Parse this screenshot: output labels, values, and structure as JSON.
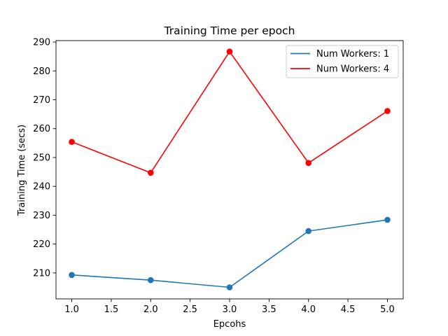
{
  "chart_data": {
    "type": "line",
    "title": "Training Time per epoch",
    "xlabel": "Epcohs",
    "ylabel": "Training Time (secs)",
    "x": [
      1,
      2,
      3,
      4,
      5
    ],
    "xlim": [
      0.8,
      5.2
    ],
    "ylim": [
      201,
      290.5
    ],
    "xticks": [
      1.0,
      1.5,
      2.0,
      2.5,
      3.0,
      3.5,
      4.0,
      4.5,
      5.0
    ],
    "xtick_labels": [
      "1.0",
      "1.5",
      "2.0",
      "2.5",
      "3.0",
      "3.5",
      "4.0",
      "4.5",
      "5.0"
    ],
    "yticks": [
      210,
      220,
      230,
      240,
      250,
      260,
      270,
      280,
      290
    ],
    "ytick_labels": [
      "210",
      "220",
      "230",
      "240",
      "250",
      "260",
      "270",
      "280",
      "290"
    ],
    "grid": false,
    "legend_position": "top-right",
    "series": [
      {
        "name": "Num Workers: 1",
        "color": "#1f77b4",
        "marker": "circle",
        "values": [
          209.3,
          207.5,
          205.0,
          224.5,
          228.4
        ]
      },
      {
        "name": "Num Workers: 4",
        "color": "#ff0000",
        "marker": "circle",
        "values": [
          255.4,
          244.7,
          286.7,
          248.1,
          266.1
        ]
      }
    ]
  }
}
